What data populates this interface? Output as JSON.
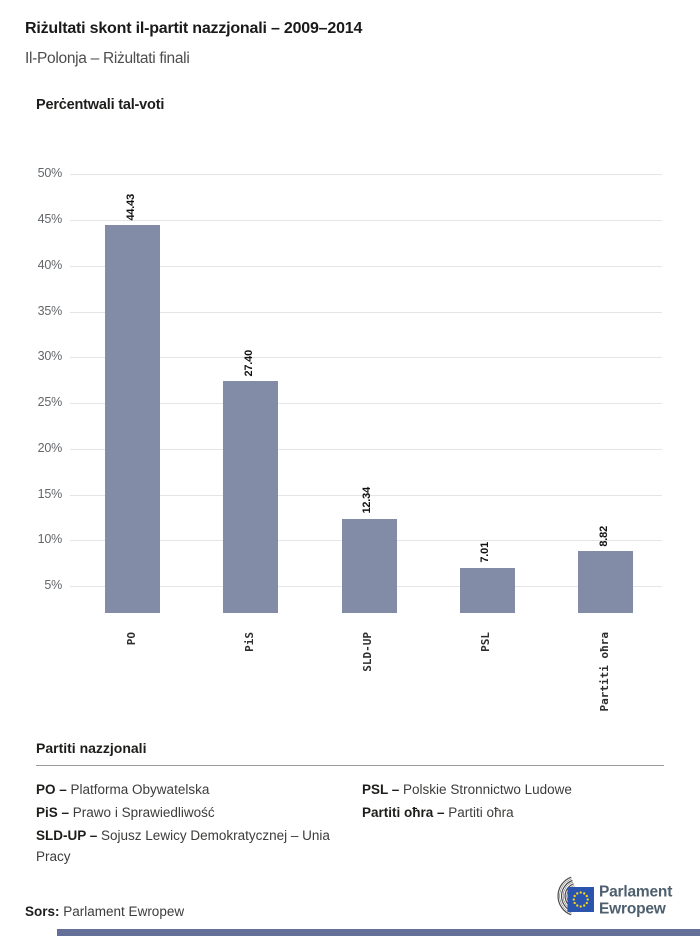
{
  "header": {
    "title": "Riżultati skont il-partit nazzjonali – 2009–2014",
    "subtitle": "Il-Polonja – Riżultati finali"
  },
  "chart_data": {
    "type": "bar",
    "title": "Perċentwali tal-voti",
    "categories": [
      "PO",
      "PiS",
      "SLD-UP",
      "PSL",
      "Partiti oħra"
    ],
    "values": [
      44.43,
      27.4,
      12.34,
      7.01,
      8.82
    ],
    "value_labels": [
      "44.43",
      "27.40",
      "12.34",
      "7.01",
      "8.82"
    ],
    "ytick_values": [
      5,
      10,
      15,
      20,
      25,
      30,
      35,
      40,
      45,
      50
    ],
    "ytick_labels": [
      "5%",
      "10%",
      "15%",
      "20%",
      "25%",
      "30%",
      "35%",
      "40%",
      "45%",
      "50%"
    ],
    "ylim": [
      0,
      50
    ],
    "xlabel": "",
    "ylabel": "Perċentwali tal-voti",
    "grid": "horizontal",
    "legend": "none",
    "bar_color": "#828CA6",
    "value_label_rotation": -90,
    "xtick_rotation": -90
  },
  "party_key": {
    "heading": "Partiti nazzjonali",
    "columns": {
      "left": [
        {
          "abbr": "PO –",
          "name": "Platforma Obywatelska"
        },
        {
          "abbr": "PiS –",
          "name": "Prawo i Sprawiedliwość"
        },
        {
          "abbr": "SLD-UP –",
          "name": "Sojusz Lewicy Demokratycznej – Unia Pracy"
        }
      ],
      "right": [
        {
          "abbr": "PSL –",
          "name": "Polskie Stronnictwo Ludowe"
        },
        {
          "abbr": "Partiti oħra –",
          "name": "Partiti oħra"
        }
      ]
    }
  },
  "footer": {
    "source_label": "Sors:",
    "source_text": "Parlament Ewropew",
    "logo": {
      "line1": "Parlament",
      "line2": "Ewropew"
    }
  },
  "colors": {
    "bar": "#828CA6",
    "gridline": "#E5E5E5",
    "eu_blue": "#2B55AD",
    "star_yellow": "#FFD617",
    "logo_text": "#4E5F6E",
    "hemicycle": "#4A4A4A",
    "bottom_strip": "#647097"
  }
}
